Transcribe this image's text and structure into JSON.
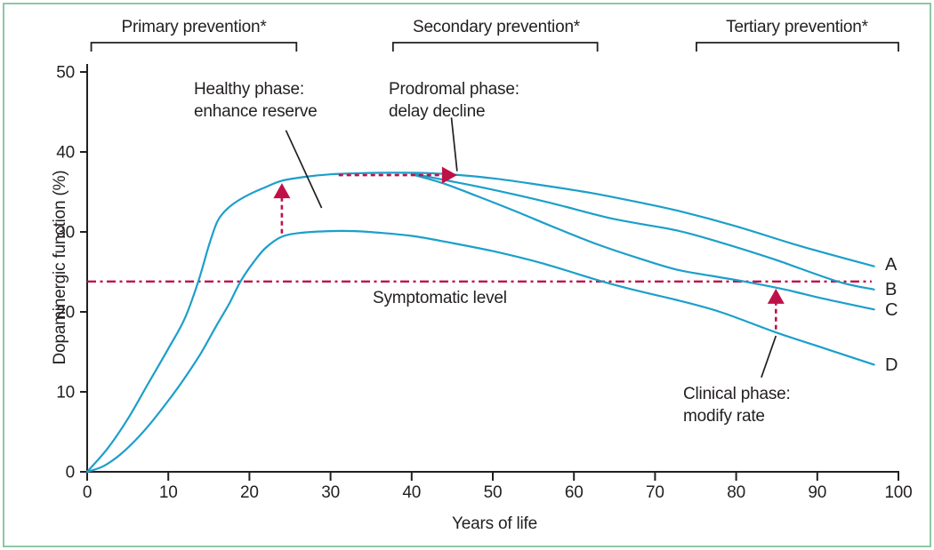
{
  "figure": {
    "border_color": "#8cc8a5",
    "background": "#ffffff"
  },
  "chart_data": {
    "type": "line",
    "title": "",
    "xlabel": "Years of life",
    "ylabel": "Dopaminergic function (%)",
    "xlim": [
      0,
      100
    ],
    "ylim": [
      0,
      50
    ],
    "xticks": [
      0,
      10,
      20,
      30,
      40,
      50,
      60,
      70,
      80,
      90,
      100
    ],
    "yticks": [
      0,
      10,
      20,
      30,
      40,
      50
    ],
    "grid": false,
    "curve_color": "#1c9fca",
    "accent_color": "#bf1148",
    "axis_color": "#231f20",
    "curve_end_labels": [
      "A",
      "B",
      "C",
      "D"
    ],
    "series": [
      {
        "name": "A",
        "points": [
          [
            0,
            0
          ],
          [
            2.5,
            2.9
          ],
          [
            5,
            6.6
          ],
          [
            7.5,
            11
          ],
          [
            10,
            15.4
          ],
          [
            12,
            19.1
          ],
          [
            13.7,
            23.8
          ],
          [
            15,
            28.3
          ],
          [
            16,
            31.2
          ],
          [
            16.8,
            32.4
          ],
          [
            18,
            33.5
          ],
          [
            20,
            34.7
          ],
          [
            22,
            35.6
          ],
          [
            24,
            36.4
          ],
          [
            27,
            36.9
          ],
          [
            30,
            37.2
          ],
          [
            34,
            37.35
          ],
          [
            38,
            37.4
          ],
          [
            42,
            37.35
          ],
          [
            46,
            37.1
          ],
          [
            50,
            36.7
          ],
          [
            55,
            36.0
          ],
          [
            62,
            34.9
          ],
          [
            68,
            33.7
          ],
          [
            73,
            32.6
          ],
          [
            80,
            30.7
          ],
          [
            88,
            28.2
          ],
          [
            97,
            25.7
          ]
        ]
      },
      {
        "name": "B",
        "points": [
          [
            40,
            37.3
          ],
          [
            44,
            36.5
          ],
          [
            48,
            35.7
          ],
          [
            53,
            34.6
          ],
          [
            58,
            33.4
          ],
          [
            65,
            31.6
          ],
          [
            72.6,
            30.2
          ],
          [
            78,
            28.7
          ],
          [
            84.6,
            26.6
          ],
          [
            92.5,
            23.8
          ],
          [
            97,
            22.8
          ]
        ]
      },
      {
        "name": "C",
        "points": [
          [
            40,
            37.2
          ],
          [
            43.8,
            36.1
          ],
          [
            48,
            34.5
          ],
          [
            53,
            32.5
          ],
          [
            58,
            30.4
          ],
          [
            63,
            28.4
          ],
          [
            68,
            26.7
          ],
          [
            72.6,
            25.3
          ],
          [
            77,
            24.5
          ],
          [
            81,
            23.8
          ],
          [
            86,
            22.8
          ],
          [
            91,
            21.6
          ],
          [
            97,
            20.3
          ]
        ]
      },
      {
        "name": "D",
        "points": [
          [
            0,
            0
          ],
          [
            2,
            0.7
          ],
          [
            4,
            2.1
          ],
          [
            6,
            4
          ],
          [
            8,
            6.3
          ],
          [
            10,
            8.9
          ],
          [
            12,
            11.7
          ],
          [
            14,
            14.8
          ],
          [
            16,
            18.4
          ],
          [
            17.5,
            21
          ],
          [
            18.9,
            23.8
          ],
          [
            20.5,
            26.2
          ],
          [
            22,
            28
          ],
          [
            24,
            29.4
          ],
          [
            26.5,
            29.9
          ],
          [
            30,
            30.1
          ],
          [
            33,
            30.1
          ],
          [
            36,
            29.9
          ],
          [
            40,
            29.5
          ],
          [
            44,
            28.8
          ],
          [
            50,
            27.6
          ],
          [
            56,
            26.1
          ],
          [
            63.5,
            23.8
          ],
          [
            68,
            22.6
          ],
          [
            72.6,
            21.5
          ],
          [
            78,
            20
          ],
          [
            85,
            17.4
          ],
          [
            91,
            15.4
          ],
          [
            97,
            13.4
          ]
        ]
      }
    ],
    "symptomatic": {
      "label": "Symptomatic level",
      "level": 23.8,
      "x_start": 0,
      "x_end": 96.7
    },
    "brackets": [
      {
        "label": "Primary prevention*",
        "x1": 0.5,
        "x2": 25.8
      },
      {
        "label": "Secondary prevention*",
        "x1": 37.7,
        "x2": 62.9
      },
      {
        "label": "Tertiary prevention*",
        "x1": 75.1,
        "x2": 100
      }
    ],
    "annotations": [
      {
        "lines": [
          "Healthy phase:",
          "enhance reserve"
        ],
        "pointer": [
          [
            24.5,
            42.7
          ],
          [
            28.9,
            33.0
          ]
        ]
      },
      {
        "lines": [
          "Prodromal phase:",
          "delay decline"
        ],
        "pointer": [
          [
            44.9,
            44.3
          ],
          [
            45.6,
            37.6
          ]
        ]
      },
      {
        "lines": [
          "Clinical phase:",
          "modify rate"
        ],
        "pointer": [
          [
            83.1,
            11.8
          ],
          [
            84.9,
            17.0
          ]
        ]
      }
    ],
    "arrows": [
      {
        "type": "up",
        "x": 24,
        "from_pct": 29.8,
        "to_pct": 36.1
      },
      {
        "type": "right",
        "y": 37.1,
        "from_x": 31,
        "to_x": 45.6
      },
      {
        "type": "up",
        "x": 84.9,
        "from_pct": 17.8,
        "to_pct": 22.9
      }
    ]
  }
}
